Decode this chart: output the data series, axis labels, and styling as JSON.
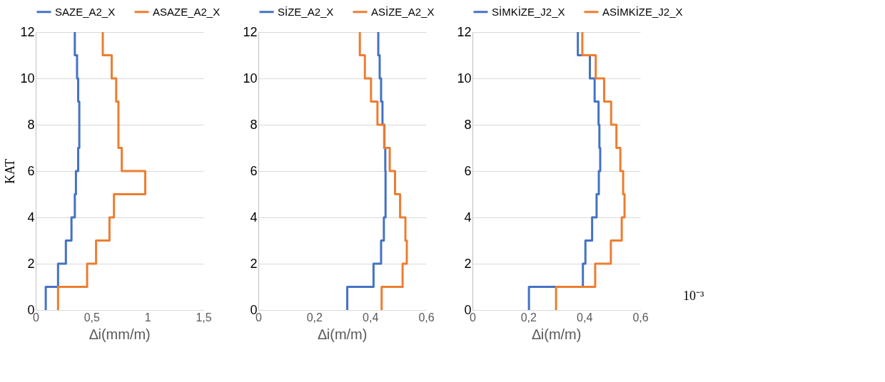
{
  "chart_data": [
    {
      "type": "step",
      "orientation": "horizontal",
      "ylabel": "KAT",
      "xlabel": "∆i(mm/m)",
      "xlim": [
        0,
        1.5
      ],
      "xticks": [
        0,
        {
          "value": 0.5,
          "label": "0,5"
        },
        1,
        {
          "value": 1.5,
          "label": "1,5"
        }
      ],
      "ylim": [
        0,
        12
      ],
      "yticks": [
        0,
        2,
        4,
        6,
        8,
        10,
        12
      ],
      "grid": "y",
      "legend": "top",
      "series": [
        {
          "name": "SAZE_A2_X",
          "color": "#4472c4",
          "x": [
            0,
            1,
            2,
            3,
            4,
            5,
            6,
            7,
            8,
            9,
            10,
            11,
            12
          ],
          "values": [
            0.09,
            0.2,
            0.27,
            0.32,
            0.35,
            0.36,
            0.38,
            0.39,
            0.39,
            0.38,
            0.37,
            0.35,
            0.35
          ]
        },
        {
          "name": "ASAZE_A2_X",
          "color": "#ed7d31",
          "x": [
            0,
            1,
            2,
            3,
            4,
            5,
            6,
            7,
            8,
            9,
            10,
            11,
            12
          ],
          "values": [
            0.2,
            0.46,
            0.54,
            0.66,
            0.7,
            0.98,
            0.77,
            0.74,
            0.74,
            0.72,
            0.68,
            0.6,
            0.6
          ]
        }
      ]
    },
    {
      "type": "step",
      "orientation": "horizontal",
      "xlabel": "∆i(m/m)",
      "xlim": [
        0,
        0.6
      ],
      "xticks": [
        0,
        {
          "value": 0.2,
          "label": "0,2"
        },
        {
          "value": 0.4,
          "label": "0,4"
        },
        {
          "value": 0.6,
          "label": "0,6"
        }
      ],
      "ylim": [
        0,
        12
      ],
      "yticks": [
        0,
        2,
        4,
        6,
        8,
        10,
        12
      ],
      "grid": "y",
      "legend": "top",
      "series": [
        {
          "name": "SİZE_A2_X",
          "color": "#4472c4",
          "x": [
            0,
            1,
            2,
            3,
            4,
            5,
            6,
            7,
            8,
            9,
            10,
            11,
            12
          ],
          "values": [
            0.318,
            0.412,
            0.439,
            0.449,
            0.455,
            0.455,
            0.454,
            0.451,
            0.444,
            0.439,
            0.434,
            0.429,
            0.429
          ]
        },
        {
          "name": "ASİZE_A2_X",
          "color": "#ed7d31",
          "x": [
            0,
            1,
            2,
            3,
            4,
            5,
            6,
            7,
            8,
            9,
            10,
            11,
            12
          ],
          "values": [
            0.441,
            0.516,
            0.531,
            0.526,
            0.507,
            0.489,
            0.47,
            0.45,
            0.426,
            0.403,
            0.381,
            0.363,
            0.363
          ]
        }
      ]
    },
    {
      "type": "step",
      "orientation": "horizontal",
      "xlabel": "∆i(m/m)",
      "annotations": [
        "10⁻³"
      ],
      "xlim": [
        0,
        0.6
      ],
      "xticks": [
        0,
        {
          "value": 0.2,
          "label": "0,2"
        },
        {
          "value": 0.4,
          "label": "0,4"
        },
        {
          "value": 0.6,
          "label": "0,6"
        }
      ],
      "ylim": [
        0,
        12
      ],
      "yticks": [
        0,
        2,
        4,
        6,
        8,
        10,
        12
      ],
      "grid": "y",
      "legend": "top",
      "series": [
        {
          "name": "SİMKİZE_J2_X",
          "color": "#4472c4",
          "x": [
            0,
            1,
            2,
            3,
            4,
            5,
            6,
            7,
            8,
            9,
            10,
            11,
            12
          ],
          "values": [
            0.202,
            0.395,
            0.404,
            0.428,
            0.444,
            0.452,
            0.457,
            0.454,
            0.451,
            0.437,
            0.42,
            0.377,
            0.377
          ]
        },
        {
          "name": "ASİMKİZE_J2_X",
          "color": "#ed7d31",
          "x": [
            0,
            1,
            2,
            3,
            4,
            5,
            6,
            7,
            8,
            9,
            10,
            11,
            12
          ],
          "values": [
            0.299,
            0.439,
            0.495,
            0.534,
            0.544,
            0.539,
            0.529,
            0.515,
            0.496,
            0.471,
            0.441,
            0.393,
            0.393
          ]
        }
      ]
    }
  ]
}
